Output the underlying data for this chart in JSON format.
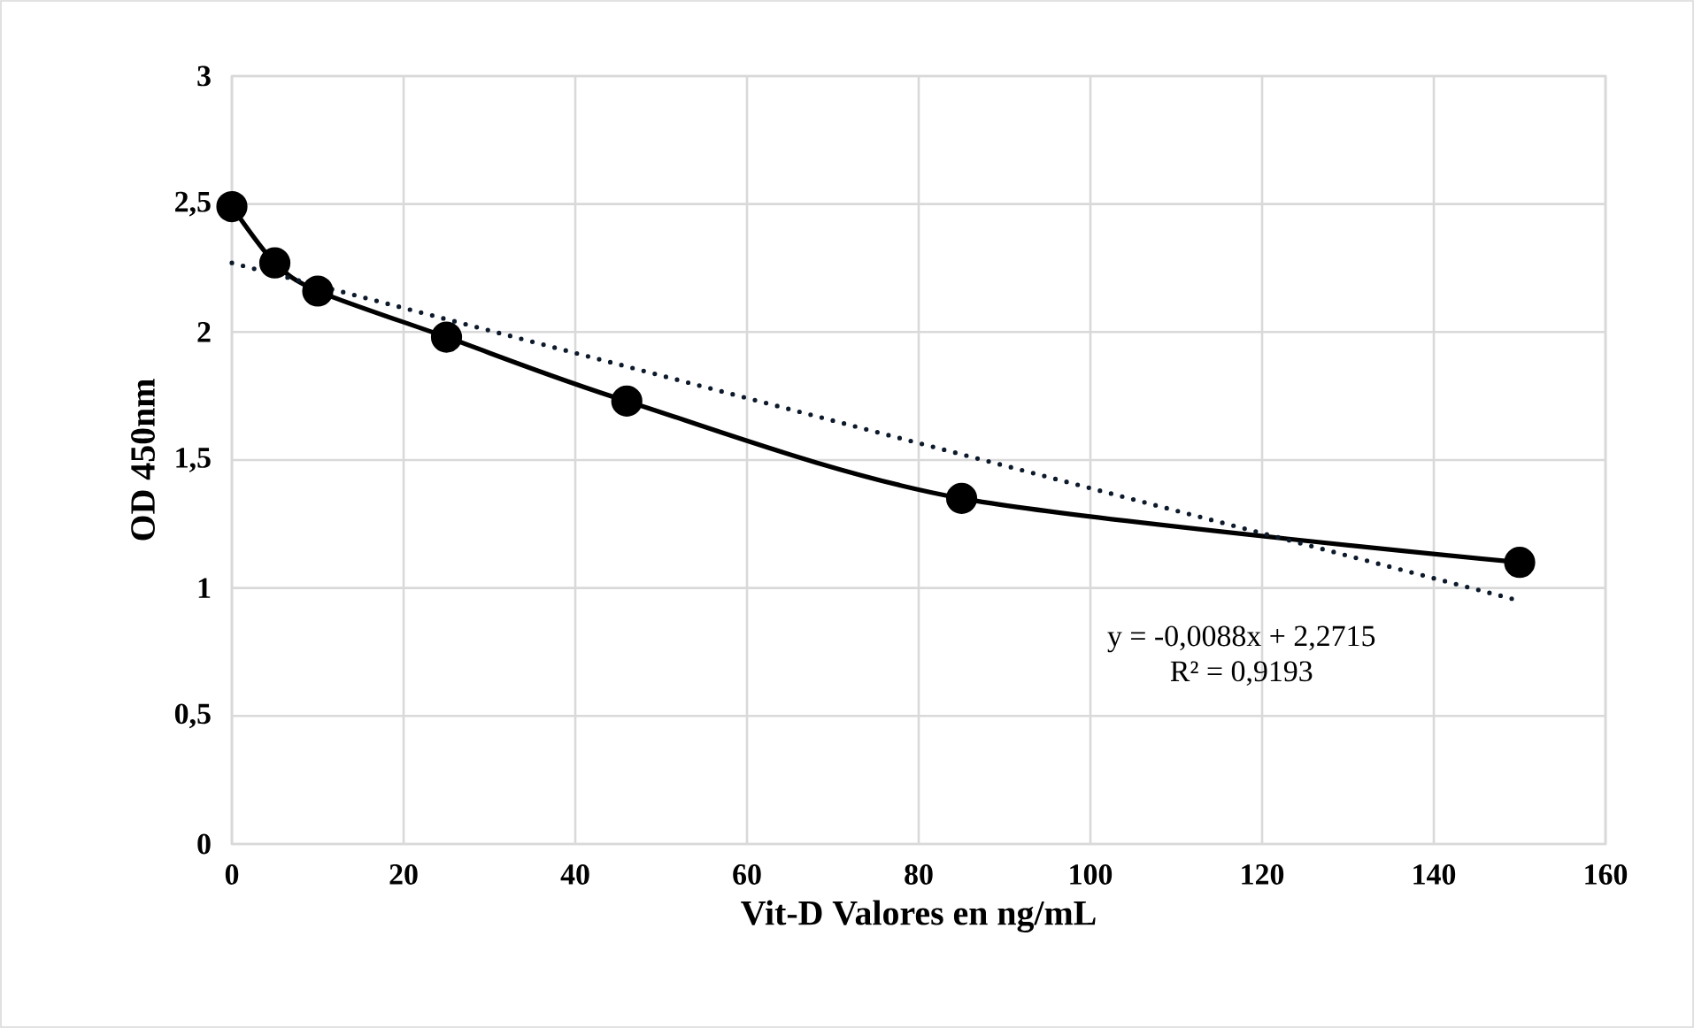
{
  "chart_data": {
    "type": "line",
    "xlabel": "Vit-D Valores en ng/mL",
    "ylabel": "OD 450nm",
    "xlim": [
      0,
      160
    ],
    "xticks": [
      0,
      20,
      40,
      60,
      80,
      100,
      120,
      140,
      160
    ],
    "ylim": [
      0,
      3
    ],
    "yticks": [
      {
        "value": 0,
        "label": "0"
      },
      {
        "value": 0.5,
        "label": "0,5"
      },
      {
        "value": 1,
        "label": "1"
      },
      {
        "value": 1.5,
        "label": "1,5"
      },
      {
        "value": 2,
        "label": "2"
      },
      {
        "value": 2.5,
        "label": "2,5"
      },
      {
        "value": 3,
        "label": "3"
      }
    ],
    "grid": true,
    "series": [
      {
        "color": "#000000",
        "marker": "circle",
        "line_style": "solid",
        "x": [
          0,
          5,
          10,
          25,
          46,
          85,
          150
        ],
        "values": [
          2.49,
          2.27,
          2.16,
          1.98,
          1.73,
          1.35,
          1.1
        ]
      },
      {
        "color": "#0d1a2b",
        "marker": "none",
        "line_style": "dotted",
        "x": [
          0,
          150
        ],
        "values": [
          2.27,
          0.95
        ]
      }
    ],
    "annotations": [
      "y = -0,0088x + 2,2715",
      "R² = 0,9193"
    ]
  }
}
